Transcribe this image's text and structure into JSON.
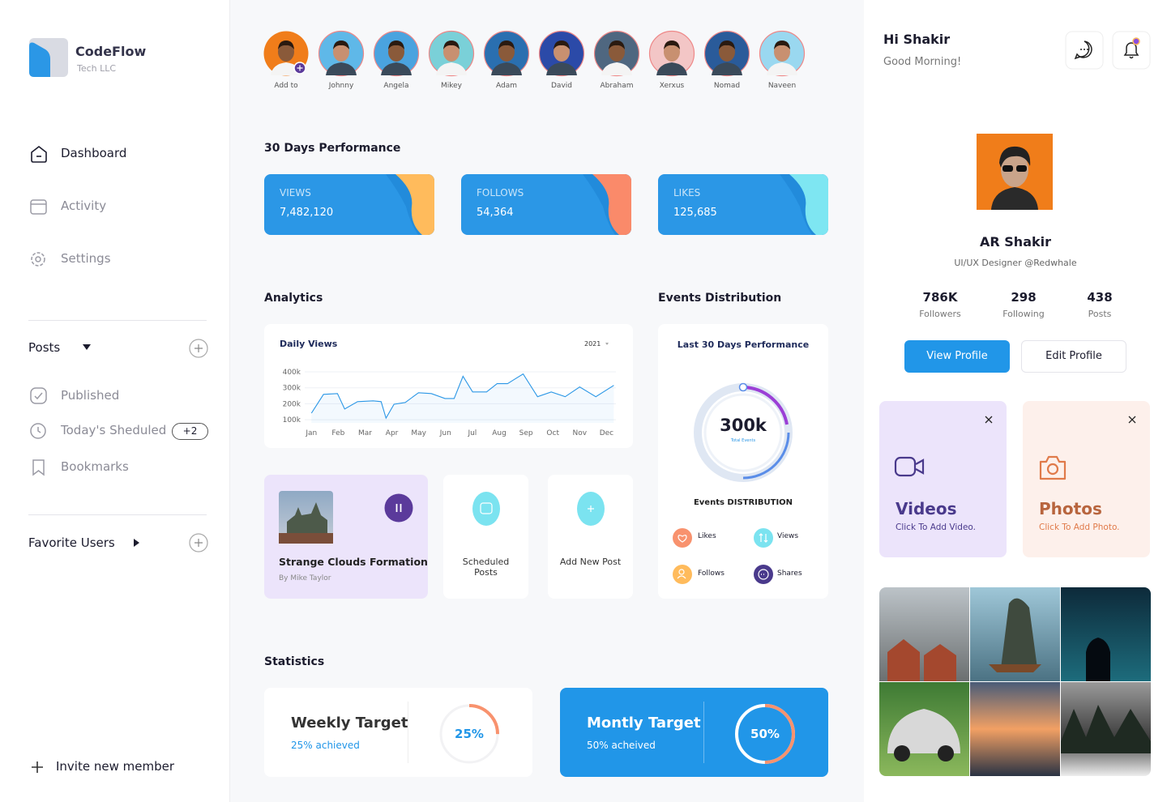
{
  "sidebar": {
    "brand": {
      "name": "CodeFlow",
      "subtitle": "Tech LLC"
    },
    "nav": [
      "Dashboard",
      "Activity",
      "Settings"
    ],
    "posts": {
      "title": "Posts",
      "items": [
        "Published",
        "Today's Sheduled",
        "Bookmarks"
      ],
      "badge": "+2"
    },
    "favorites": "Favorite Users",
    "invite": "Invite new member"
  },
  "stories": [
    "Add to",
    "Johnny",
    "Angela",
    "Mikey",
    "Adam",
    "David",
    "Abraham",
    "Xerxus",
    "Nomad",
    "Naveen"
  ],
  "performance": {
    "title": "30 Days Performance",
    "cards": [
      {
        "label": "VIEWS",
        "value": "7,482,120"
      },
      {
        "label": "FOLLOWS",
        "value": "54,364"
      },
      {
        "label": "LIKES",
        "value": "125,685"
      }
    ]
  },
  "analytics": {
    "title": "Analytics",
    "year": "2021",
    "chart_data": {
      "type": "line",
      "title": "Daily Views",
      "color": "#2b97e6",
      "x": [
        0,
        0.45,
        0.97,
        1.24,
        1.72,
        2.3,
        2.6,
        2.78,
        3.08,
        3.5,
        3.99,
        4.47,
        4.98,
        5.32,
        5.65,
        6.01,
        6.53,
        6.92,
        7.31,
        7.89,
        8.43,
        8.94,
        9.46,
        10,
        10.6,
        11.27
      ],
      "values": [
        141000,
        259000,
        264000,
        167000,
        213000,
        218000,
        213000,
        110000,
        197000,
        208000,
        269000,
        264000,
        233000,
        233000,
        372000,
        274000,
        274000,
        326000,
        326000,
        387000,
        244000,
        274000,
        244000,
        305000,
        244000,
        315000
      ],
      "xlim": [
        -0.25,
        11.35
      ],
      "xticks": [
        {
          "value": 0,
          "label": "Jan"
        },
        {
          "value": 1,
          "label": "Feb"
        },
        {
          "value": 2,
          "label": "Mar"
        },
        {
          "value": 3,
          "label": "Apr"
        },
        {
          "value": 4,
          "label": "May"
        },
        {
          "value": 5,
          "label": "Jun"
        },
        {
          "value": 6,
          "label": "Jul"
        },
        {
          "value": 7,
          "label": "Aug"
        },
        {
          "value": 8,
          "label": "Sep"
        },
        {
          "value": 9,
          "label": "Oct"
        },
        {
          "value": 10,
          "label": "Nov"
        },
        {
          "value": 11,
          "label": "Dec"
        }
      ],
      "ylim": [
        80000,
        400000
      ],
      "yticks": [
        {
          "value": 100000,
          "label": "100k"
        },
        {
          "value": 200000,
          "label": "200k"
        },
        {
          "value": 300000,
          "label": "300k"
        },
        {
          "value": 400000,
          "label": "400k"
        }
      ],
      "grid": true
    }
  },
  "media": {
    "post": {
      "title": "Strange Clouds Formation",
      "author": "By Mike Taylor"
    },
    "scheduled": "Scheduled Posts",
    "add": "Add New Post"
  },
  "events": {
    "title": "Events Distribution",
    "subtitle": "Last 30 Days Performance",
    "total": "300k",
    "total_label": "Total Events",
    "caption": "Events DISTRIBUTION",
    "legend": [
      "Likes",
      "Views",
      "Follows",
      "Shares"
    ]
  },
  "statistics": {
    "title": "Statistics",
    "cards": [
      {
        "title": "Weekly Target",
        "note": "25% achieved",
        "value": 25,
        "value_label": "25%"
      },
      {
        "title": "Montly Target",
        "note": "50% acheived",
        "value": 50,
        "value_label": "50%"
      }
    ]
  },
  "profile": {
    "greeting": "Hi Shakir",
    "subgreeting": "Good Morning!",
    "name": "AR Shakir",
    "role": "UI/UX Designer @Redwhale",
    "stats": [
      {
        "value": "786K",
        "label": "Followers"
      },
      {
        "value": "298",
        "label": "Following"
      },
      {
        "value": "438",
        "label": "Posts"
      }
    ],
    "buttons": [
      "View Profile",
      "Edit Profile"
    ],
    "cards": [
      {
        "title": "Videos",
        "note": "Click To Add Video."
      },
      {
        "title": "Photos",
        "note": "Click To Add Photo."
      }
    ]
  }
}
